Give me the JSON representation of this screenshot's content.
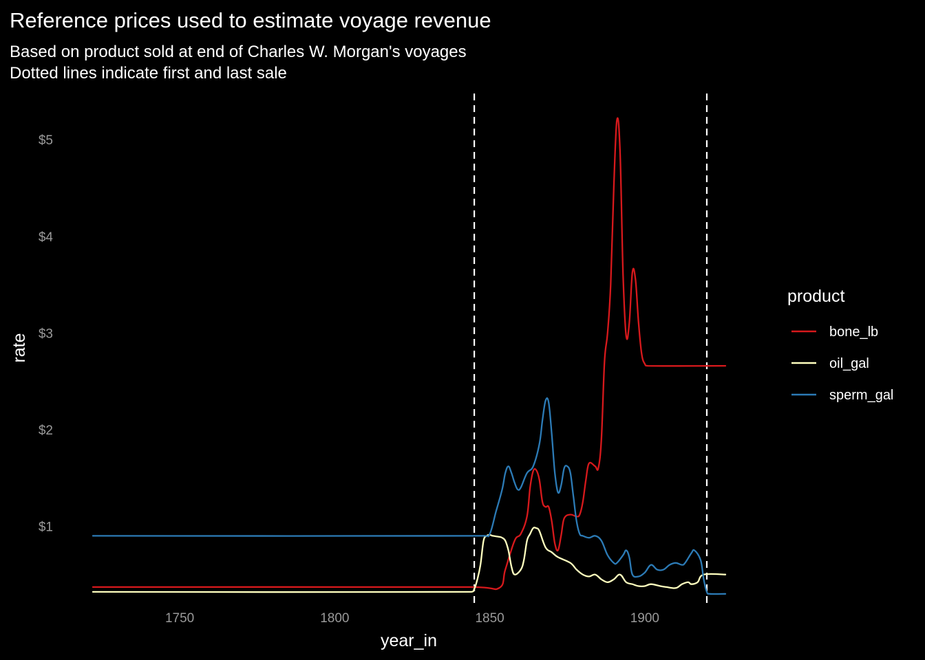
{
  "chart_data": {
    "type": "line",
    "title": "Reference prices used to estimate voyage revenue",
    "subtitle_lines": [
      "Based on product sold at end of Charles W. Morgan's voyages",
      "Dotted lines indicate first and last sale"
    ],
    "xlabel": "year_in",
    "ylabel": "rate",
    "xlim": [
      1722,
      1926
    ],
    "ylim": [
      0.22,
      5.45
    ],
    "x_ticks": [
      1750,
      1800,
      1850,
      1900
    ],
    "y_ticks": [
      1,
      2,
      3,
      4,
      5
    ],
    "y_tick_labels": [
      "$1",
      "$2",
      "$3",
      "$4",
      "$5"
    ],
    "grid": false,
    "legend": {
      "title": "product",
      "position": "right"
    },
    "vlines": [
      1845,
      1920
    ],
    "series": [
      {
        "name": "bone_lb",
        "color": "#d7191c",
        "x": [
          1722,
          1844,
          1853,
          1855,
          1858,
          1860,
          1862,
          1863,
          1864,
          1865,
          1866,
          1867,
          1868,
          1869,
          1870,
          1871,
          1872,
          1873,
          1874,
          1876,
          1878,
          1879,
          1880,
          1881,
          1882,
          1884,
          1885,
          1886,
          1887,
          1888,
          1889,
          1890,
          1891,
          1892,
          1893,
          1894,
          1895,
          1896,
          1897,
          1898,
          1899,
          1900,
          1901,
          1926
        ],
        "y": [
          0.37,
          0.37,
          0.36,
          0.55,
          0.85,
          0.92,
          1.1,
          1.4,
          1.57,
          1.58,
          1.48,
          1.25,
          1.2,
          1.2,
          1.05,
          0.82,
          0.75,
          0.9,
          1.08,
          1.12,
          1.1,
          1.12,
          1.25,
          1.48,
          1.65,
          1.62,
          1.6,
          1.9,
          2.7,
          3.0,
          3.5,
          4.5,
          5.2,
          4.9,
          3.6,
          2.97,
          3.1,
          3.63,
          3.55,
          3.1,
          2.78,
          2.68,
          2.66,
          2.66
        ]
      },
      {
        "name": "oil_gal",
        "color": "#ffffbf",
        "x": [
          1722,
          1844,
          1845,
          1846,
          1847,
          1848,
          1849,
          1850,
          1851,
          1853,
          1854,
          1855,
          1856,
          1857,
          1858,
          1860,
          1861,
          1862,
          1863,
          1864,
          1865,
          1866,
          1868,
          1870,
          1872,
          1876,
          1878,
          1880,
          1882,
          1884,
          1886,
          1888,
          1890,
          1892,
          1894,
          1896,
          1898,
          1900,
          1902,
          1905,
          1907,
          1910,
          1912,
          1914,
          1915,
          1917,
          1919,
          1926
        ],
        "y": [
          0.32,
          0.32,
          0.35,
          0.45,
          0.6,
          0.85,
          0.9,
          0.91,
          0.9,
          0.89,
          0.88,
          0.85,
          0.75,
          0.58,
          0.5,
          0.55,
          0.65,
          0.85,
          0.92,
          0.98,
          0.98,
          0.95,
          0.78,
          0.73,
          0.68,
          0.62,
          0.55,
          0.5,
          0.48,
          0.5,
          0.45,
          0.42,
          0.45,
          0.5,
          0.42,
          0.4,
          0.38,
          0.38,
          0.4,
          0.38,
          0.37,
          0.36,
          0.4,
          0.42,
          0.4,
          0.42,
          0.5,
          0.5
        ]
      },
      {
        "name": "sperm_gal",
        "color": "#2c7bb6",
        "x": [
          1722,
          1848,
          1850,
          1852,
          1854,
          1855,
          1856,
          1857,
          1858,
          1859,
          1860,
          1862,
          1864,
          1866,
          1867,
          1868,
          1869,
          1870,
          1871,
          1872,
          1873,
          1874,
          1875,
          1876,
          1877,
          1878,
          1879,
          1880,
          1882,
          1884,
          1886,
          1888,
          1890,
          1891,
          1893,
          1894,
          1895,
          1896,
          1898,
          1900,
          1902,
          1904,
          1906,
          1908,
          1910,
          1912,
          1913,
          1915,
          1916,
          1918,
          1919,
          1920,
          1921,
          1926
        ],
        "y": [
          0.9,
          0.9,
          0.92,
          1.15,
          1.38,
          1.55,
          1.62,
          1.55,
          1.45,
          1.38,
          1.4,
          1.55,
          1.62,
          1.85,
          2.1,
          2.3,
          2.28,
          1.95,
          1.55,
          1.35,
          1.42,
          1.6,
          1.62,
          1.55,
          1.3,
          1.05,
          0.92,
          0.9,
          0.88,
          0.9,
          0.85,
          0.7,
          0.62,
          0.62,
          0.7,
          0.75,
          0.68,
          0.5,
          0.48,
          0.52,
          0.6,
          0.55,
          0.55,
          0.6,
          0.62,
          0.6,
          0.62,
          0.72,
          0.75,
          0.65,
          0.45,
          0.32,
          0.3,
          0.3
        ]
      }
    ]
  }
}
